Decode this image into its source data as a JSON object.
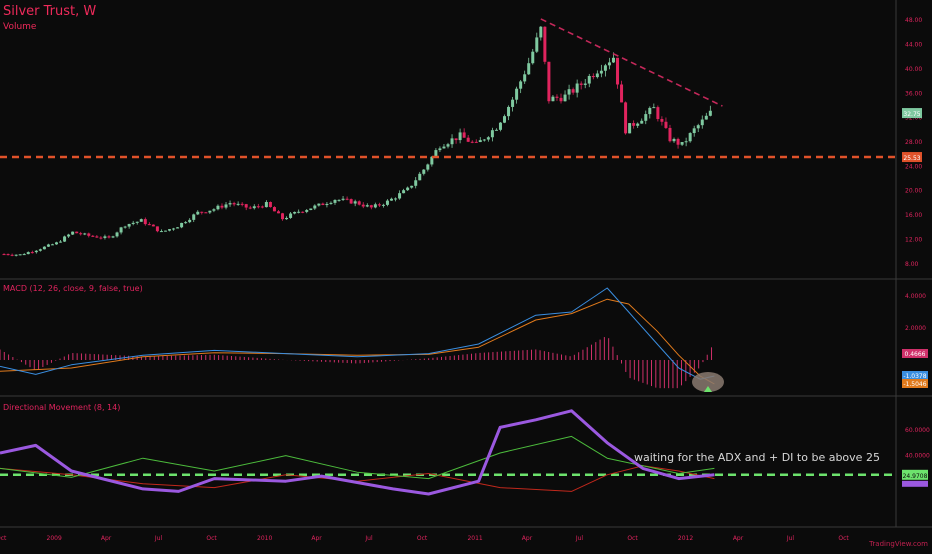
{
  "header": {
    "title": "Silver Trust, W",
    "volume_label": "Volume",
    "macd_title": "MACD (12, 26, close, 9, false, true)",
    "dmi_title": "Directional Movement (8, 14)",
    "annotation": "waiting for the ADX and + DI to be above 25",
    "brand": "TradingView.com"
  },
  "colors": {
    "background": "#0b0b0b",
    "separator": "#3a3a3a",
    "label": "#e0245e",
    "candle_up": "#7fc9a0",
    "candle_down": "#e0245e",
    "support_line": "#e0522a",
    "trend_line": "#c4285a",
    "macd_line": "#3a8ee0",
    "signal_line": "#e07a1c",
    "histogram": "#d0306a",
    "adx": "#9b59e0",
    "plus_di": "#4cbb3c",
    "minus_di": "#c0281c",
    "level_line": "#6de36d"
  },
  "chart_data": [
    {
      "type": "candlestick",
      "title": "Silver Trust, W",
      "y_axis_ticks": [
        "48.00",
        "44.00",
        "40.00",
        "36.00",
        "32.00",
        "28.00",
        "24.00",
        "20.00",
        "16.00",
        "12.00",
        "8.00"
      ],
      "ylim": [
        6,
        50
      ],
      "x_axis_ticks": [
        "Oct",
        "2009",
        "Apr",
        "Jul",
        "Oct",
        "2010",
        "Apr",
        "Jul",
        "Oct",
        "2011",
        "Apr",
        "Jul",
        "Oct",
        "2012",
        "Apr",
        "Jul",
        "Oct"
      ],
      "price_labels": {
        "last": "32.75",
        "support": "25.53"
      },
      "support_level": 25.53,
      "trendline": {
        "from": [
          "2011-04-25",
          48.2
        ],
        "to": [
          "2012-03-05",
          33.9
        ]
      },
      "weekly_close": [
        [
          "2008-10-06",
          9.6
        ],
        [
          "2008-11-03",
          9.5
        ],
        [
          "2008-12-01",
          10.3
        ],
        [
          "2009-01-05",
          11.4
        ],
        [
          "2009-02-02",
          13.2
        ],
        [
          "2009-03-02",
          12.6
        ],
        [
          "2009-04-06",
          12.2
        ],
        [
          "2009-05-04",
          14.4
        ],
        [
          "2009-06-01",
          15.1
        ],
        [
          "2009-07-06",
          13.2
        ],
        [
          "2009-08-03",
          14.2
        ],
        [
          "2009-09-07",
          16.4
        ],
        [
          "2009-10-05",
          17.0
        ],
        [
          "2009-11-02",
          18.0
        ],
        [
          "2009-12-07",
          17.1
        ],
        [
          "2010-01-04",
          17.8
        ],
        [
          "2010-02-01",
          15.4
        ],
        [
          "2010-03-01",
          16.6
        ],
        [
          "2010-04-05",
          17.6
        ],
        [
          "2010-05-03",
          18.6
        ],
        [
          "2010-06-07",
          18.1
        ],
        [
          "2010-07-05",
          17.2
        ],
        [
          "2010-08-02",
          18.2
        ],
        [
          "2010-09-06",
          20.2
        ],
        [
          "2010-10-04",
          23.5
        ],
        [
          "2010-11-01",
          27.5
        ],
        [
          "2010-12-06",
          29.0
        ],
        [
          "2011-01-03",
          27.5
        ],
        [
          "2011-02-07",
          30.5
        ],
        [
          "2011-03-07",
          35.0
        ],
        [
          "2011-04-04",
          41.0
        ],
        [
          "2011-04-25",
          46.5
        ],
        [
          "2011-05-09",
          35.0
        ],
        [
          "2011-06-06",
          35.5
        ],
        [
          "2011-07-04",
          37.5
        ],
        [
          "2011-08-08",
          40.5
        ],
        [
          "2011-08-29",
          42.0
        ],
        [
          "2011-09-19",
          30.0
        ],
        [
          "2011-10-10",
          31.5
        ],
        [
          "2011-11-07",
          33.5
        ],
        [
          "2011-12-05",
          28.5
        ],
        [
          "2011-12-26",
          27.5
        ],
        [
          "2012-01-16",
          30.0
        ],
        [
          "2012-02-13",
          32.75
        ]
      ]
    },
    {
      "type": "line",
      "title": "MACD (12, 26, close, 9, false, true)",
      "y_axis_ticks": [
        "4.0000",
        "2.0000"
      ],
      "value_labels": {
        "histogram": "0.4666",
        "macd": "-1.0378",
        "signal": "-1.5046"
      },
      "series": [
        {
          "name": "MACD",
          "values": [
            [
              0,
              -0.4
            ],
            [
              0.05,
              -0.9
            ],
            [
              0.1,
              -0.3
            ],
            [
              0.2,
              0.3
            ],
            [
              0.3,
              0.6
            ],
            [
              0.4,
              0.4
            ],
            [
              0.5,
              0.2
            ],
            [
              0.6,
              0.4
            ],
            [
              0.67,
              1.0
            ],
            [
              0.75,
              2.8
            ],
            [
              0.8,
              3.0
            ],
            [
              0.85,
              4.5
            ],
            [
              0.88,
              3.0
            ],
            [
              0.92,
              1.0
            ],
            [
              0.95,
              -0.5
            ],
            [
              0.98,
              -1.2
            ],
            [
              1.0,
              -1.0
            ]
          ]
        },
        {
          "name": "Signal",
          "values": [
            [
              0,
              -0.7
            ],
            [
              0.05,
              -0.6
            ],
            [
              0.1,
              -0.5
            ],
            [
              0.2,
              0.2
            ],
            [
              0.3,
              0.45
            ],
            [
              0.4,
              0.4
            ],
            [
              0.5,
              0.3
            ],
            [
              0.6,
              0.35
            ],
            [
              0.67,
              0.8
            ],
            [
              0.75,
              2.5
            ],
            [
              0.8,
              2.9
            ],
            [
              0.85,
              3.8
            ],
            [
              0.88,
              3.5
            ],
            [
              0.92,
              1.8
            ],
            [
              0.95,
              0.3
            ],
            [
              0.98,
              -1.0
            ],
            [
              1.0,
              -1.5
            ]
          ]
        }
      ]
    },
    {
      "type": "line",
      "title": "Directional Movement (8, 14)",
      "y_axis_ticks": [
        "60.0000",
        "40.0000"
      ],
      "value_labels": {
        "adx": "24.9708"
      },
      "level": 25,
      "series": [
        {
          "name": "ADX",
          "values": [
            [
              0,
              42
            ],
            [
              0.05,
              48
            ],
            [
              0.1,
              28
            ],
            [
              0.2,
              14
            ],
            [
              0.25,
              12
            ],
            [
              0.3,
              22
            ],
            [
              0.4,
              20
            ],
            [
              0.45,
              24
            ],
            [
              0.55,
              14
            ],
            [
              0.6,
              10
            ],
            [
              0.67,
              20
            ],
            [
              0.7,
              62
            ],
            [
              0.75,
              68
            ],
            [
              0.8,
              75
            ],
            [
              0.85,
              50
            ],
            [
              0.9,
              30
            ],
            [
              0.95,
              22
            ],
            [
              1.0,
              25
            ]
          ]
        },
        {
          "name": "+DI",
          "values": [
            [
              0,
              30
            ],
            [
              0.1,
              23
            ],
            [
              0.2,
              38
            ],
            [
              0.3,
              28
            ],
            [
              0.4,
              40
            ],
            [
              0.5,
              27
            ],
            [
              0.6,
              22
            ],
            [
              0.7,
              42
            ],
            [
              0.8,
              55
            ],
            [
              0.85,
              38
            ],
            [
              0.9,
              32
            ],
            [
              0.95,
              26
            ],
            [
              1.0,
              30
            ]
          ]
        },
        {
          "name": "-DI",
          "values": [
            [
              0,
              30
            ],
            [
              0.1,
              25
            ],
            [
              0.2,
              18
            ],
            [
              0.3,
              15
            ],
            [
              0.4,
              25
            ],
            [
              0.5,
              20
            ],
            [
              0.6,
              26
            ],
            [
              0.7,
              15
            ],
            [
              0.8,
              12
            ],
            [
              0.85,
              25
            ],
            [
              0.9,
              32
            ],
            [
              0.95,
              28
            ],
            [
              1.0,
              22
            ]
          ]
        }
      ]
    }
  ]
}
